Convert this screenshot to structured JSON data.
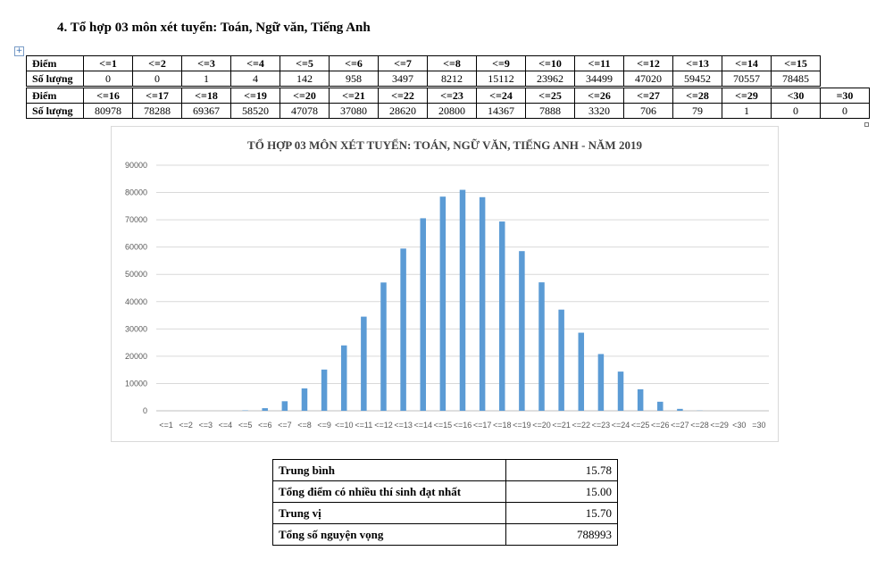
{
  "heading": "4. Tổ hợp 03 môn xét tuyển: Toán, Ngữ văn, Tiếng Anh",
  "table_top": {
    "label_diem": "Điểm",
    "label_soluong": "Số lượng",
    "headers": [
      "<=1",
      "<=2",
      "<=3",
      "<=4",
      "<=5",
      "<=6",
      "<=7",
      "<=8",
      "<=9",
      "<=10",
      "<=11",
      "<=12",
      "<=13",
      "<=14",
      "<=15"
    ],
    "values": [
      "0",
      "0",
      "1",
      "4",
      "142",
      "958",
      "3497",
      "8212",
      "15112",
      "23962",
      "34499",
      "47020",
      "59452",
      "70557",
      "78485"
    ]
  },
  "table_bottom": {
    "label_diem": "Điểm",
    "label_soluong": "Số lượng",
    "headers": [
      "<=16",
      "<=17",
      "<=18",
      "<=19",
      "<=20",
      "<=21",
      "<=22",
      "<=23",
      "<=24",
      "<=25",
      "<=26",
      "<=27",
      "<=28",
      "<=29",
      "<30",
      "=30"
    ],
    "values": [
      "80978",
      "78288",
      "69367",
      "58520",
      "47078",
      "37080",
      "28620",
      "20800",
      "14367",
      "7888",
      "3320",
      "706",
      "79",
      "1",
      "0",
      "0"
    ]
  },
  "chart_data": {
    "type": "bar",
    "title": "TỔ HỢP 03 MÔN XÉT TUYỂN: TOÁN, NGỮ VĂN, TIẾNG ANH - NĂM 2019",
    "categories": [
      "<=1",
      "<=2",
      "<=3",
      "<=4",
      "<=5",
      "<=6",
      "<=7",
      "<=8",
      "<=9",
      "<=10",
      "<=11",
      "<=12",
      "<=13",
      "<=14",
      "<=15",
      "<=16",
      "<=17",
      "<=18",
      "<=19",
      "<=20",
      "<=21",
      "<=22",
      "<=23",
      "<=24",
      "<=25",
      "<=26",
      "<=27",
      "<=28",
      "<=29",
      "<30",
      "=30"
    ],
    "values": [
      0,
      0,
      1,
      4,
      142,
      958,
      3497,
      8212,
      15112,
      23962,
      34499,
      47020,
      59452,
      70557,
      78485,
      80978,
      78288,
      69367,
      58520,
      47078,
      37080,
      28620,
      20800,
      14367,
      7888,
      3320,
      706,
      79,
      1,
      0,
      0
    ],
    "ylim": [
      0,
      90000
    ],
    "yticks": [
      0,
      10000,
      20000,
      30000,
      40000,
      50000,
      60000,
      70000,
      80000,
      90000
    ],
    "grid": true,
    "bar_color": "#5b9bd5",
    "xlabel": "",
    "ylabel": ""
  },
  "stats": [
    {
      "label": "Trung bình",
      "value": "15.78"
    },
    {
      "label": "Tổng điểm có nhiều thí sinh đạt nhất",
      "value": "15.00"
    },
    {
      "label": "Trung vị",
      "value": "15.70"
    },
    {
      "label": "Tổng số nguyện vọng",
      "value": "788993"
    }
  ]
}
